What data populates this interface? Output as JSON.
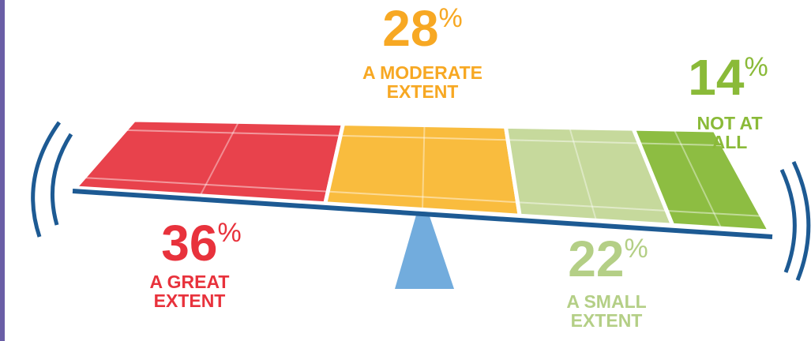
{
  "chart_data": {
    "type": "seesaw",
    "categories": [
      "A GREAT EXTENT",
      "A MODERATE EXTENT",
      "A SMALL EXTENT",
      "NOT AT ALL"
    ],
    "values": [
      36,
      28,
      22,
      14
    ],
    "unit": "%",
    "colors": [
      "#e8424c",
      "#f9bc3e",
      "#c6d99c",
      "#8dbd42"
    ],
    "label_colors": [
      "#e8323c",
      "#f7a823",
      "#b4cf86",
      "#8aba38"
    ]
  }
}
